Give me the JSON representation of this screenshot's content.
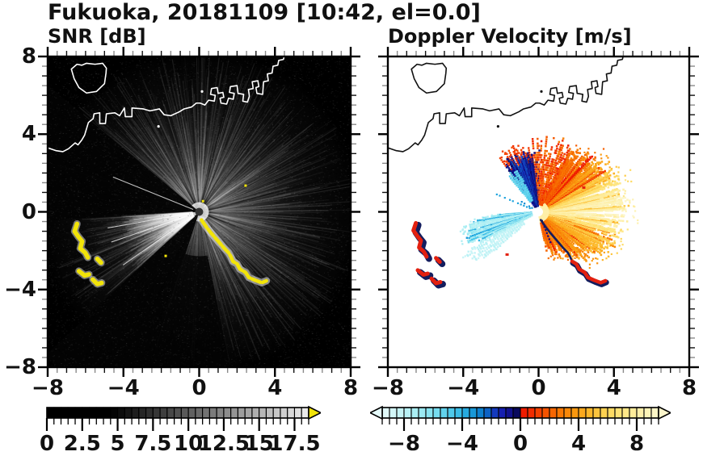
{
  "title": "Fukuoka, 20181109 [10:42, el=0.0]",
  "chart_data": [
    {
      "type": "heatmap",
      "title": "SNR [dB]",
      "xlim": [
        -8,
        8
      ],
      "ylim": [
        -8,
        8
      ],
      "grid": false,
      "xticks": {
        "values": [
          -8,
          -4,
          0,
          4,
          8
        ],
        "labels": [
          "−8",
          "−4",
          "0",
          "4",
          "8"
        ],
        "minor_step": 0.5
      },
      "yticks": {
        "values": [
          8,
          4,
          0,
          -4,
          -8
        ],
        "labels": [
          "8",
          "4",
          "0",
          "−4",
          "−8"
        ],
        "minor_step": 0.5
      },
      "colorbar": {
        "range": [
          0,
          18.5
        ],
        "segment_step": 0.5,
        "tick_values": [
          0,
          2.5,
          5,
          7.5,
          10,
          12.5,
          15,
          17.5
        ],
        "tick_labels": [
          "0",
          "2.5",
          "5",
          "7.5",
          "10",
          "12.5",
          "15",
          "17.5"
        ],
        "minor_step": 0.5,
        "ramp": {
          "black_until": 4.5,
          "white_at": 18.5,
          "max_gray": 237
        },
        "overflow_color": "#f2e409",
        "legend_position": "bottom"
      },
      "background_color": "#000000",
      "coast_color": "#ffffff",
      "features": {
        "radar_center": [
          0,
          0
        ],
        "center_dot_color": "#333333",
        "glow_radius_units": 8.8,
        "bright_sector_deg": [
          -80,
          140
        ],
        "dark_wedges_deg": [
          [
            140,
            183
          ],
          [
            223,
            252
          ]
        ],
        "south_dark_wedge_deg": [
          252,
          281
        ],
        "bright_wedges_deg": [
          [
            183,
            200,
            4.2
          ],
          [
            200,
            223,
            4.6
          ]
        ],
        "thin_bright_rays_deg": [
          158,
          190,
          199,
          215
        ],
        "thin_dark_rays_deg": [
          52,
          60,
          68,
          76
        ],
        "echo_arc": [
          [
            0.12,
            -0.42
          ],
          [
            0.38,
            -0.78
          ],
          [
            0.62,
            -1.08
          ],
          [
            0.95,
            -1.45
          ],
          [
            1.3,
            -1.85
          ],
          [
            1.55,
            -2.1
          ],
          [
            1.68,
            -2.32
          ],
          [
            1.78,
            -2.55
          ],
          [
            2.0,
            -2.68
          ],
          [
            2.15,
            -2.95
          ],
          [
            2.45,
            -3.12
          ],
          [
            2.62,
            -3.38
          ],
          [
            2.95,
            -3.52
          ],
          [
            3.3,
            -3.65
          ],
          [
            3.55,
            -3.55
          ]
        ],
        "echo_patches": [
          [
            [
              -6.45,
              -0.62
            ],
            [
              -6.58,
              -1.0
            ],
            [
              -6.38,
              -1.28
            ],
            [
              -6.18,
              -1.52
            ],
            [
              -6.28,
              -1.88
            ],
            [
              -6.02,
              -2.1
            ],
            [
              -5.88,
              -2.35
            ]
          ],
          [
            [
              -5.38,
              -2.42
            ],
            [
              -5.18,
              -2.62
            ]
          ],
          [
            [
              -6.35,
              -3.05
            ],
            [
              -6.05,
              -3.28
            ],
            [
              -5.82,
              -3.22
            ]
          ],
          [
            [
              -5.62,
              -3.48
            ],
            [
              -5.38,
              -3.72
            ],
            [
              -5.15,
              -3.66
            ]
          ]
        ],
        "specks": [
          [
            0.2,
            0.55
          ],
          [
            2.45,
            1.35
          ],
          [
            -1.77,
            -2.27
          ]
        ],
        "echo_color": "#f2e409"
      }
    },
    {
      "type": "heatmap",
      "title": "Doppler Velocity [m/s]",
      "xlim": [
        -8,
        8
      ],
      "ylim": [
        -8,
        8
      ],
      "grid": false,
      "xticks": {
        "values": [
          -8,
          -4,
          0,
          4,
          8
        ],
        "labels": [
          "−8",
          "−4",
          "0",
          "4",
          "8"
        ],
        "minor_step": 0.5
      },
      "yticks": {
        "values": [
          8,
          4,
          0,
          -4,
          -8
        ],
        "labels": [],
        "minor_step": 0.5
      },
      "colorbar": {
        "range": [
          -9.5,
          9.5
        ],
        "segment_step": 0.5,
        "tick_values": [
          -8,
          -4,
          0,
          4,
          8
        ],
        "tick_labels": [
          "−8",
          "−4",
          "0",
          "4",
          "8"
        ],
        "minor_step": 0.5,
        "underflow_color": "#e6fbfb",
        "overflow_color": "#fcf6cc",
        "legend_position": "bottom"
      },
      "background_color": "#ffffff",
      "coast_color": "#111111",
      "palette_anchors": [
        [
          -9.5,
          "#e6fbfb"
        ],
        [
          -8.5,
          "#ccf5f7"
        ],
        [
          -7.5,
          "#b2f0f4"
        ],
        [
          -6.5,
          "#93e7f1"
        ],
        [
          -5.5,
          "#6cd8ee"
        ],
        [
          -4.5,
          "#45c4e9"
        ],
        [
          -3.5,
          "#1da3dd"
        ],
        [
          -2.8,
          "#0e83cf"
        ],
        [
          -2.2,
          "#0d5fc4"
        ],
        [
          -1.7,
          "#1536bd"
        ],
        [
          -1.2,
          "#161cae"
        ],
        [
          -0.7,
          "#10108a"
        ],
        [
          -0.3,
          "#0a0a62"
        ],
        [
          -0.02,
          "#060646"
        ],
        [
          0.02,
          "#ee1400"
        ],
        [
          0.8,
          "#f12e00"
        ],
        [
          1.8,
          "#f55500"
        ],
        [
          2.8,
          "#f87a04"
        ],
        [
          3.8,
          "#fa9a10"
        ],
        [
          4.8,
          "#fcb92c"
        ],
        [
          5.8,
          "#fdd252"
        ],
        [
          6.8,
          "#fee378"
        ],
        [
          7.8,
          "#feec9c"
        ],
        [
          8.8,
          "#fdf3ba"
        ],
        [
          9.5,
          "#fcf6cc"
        ]
      ],
      "features": {
        "radar_center": [
          0,
          0
        ],
        "center_dot_color": "#ffffff",
        "warm_sector_deg": [
          -78,
          62
        ],
        "warm_velocity_by_azimuth": [
          [
            -75,
            1.8
          ],
          [
            -55,
            2.4
          ],
          [
            -38,
            3.2
          ],
          [
            -20,
            5.2
          ],
          [
            -5,
            7.6
          ],
          [
            8,
            7.9
          ],
          [
            20,
            5.8
          ],
          [
            32,
            3.6
          ],
          [
            45,
            2.4
          ],
          [
            62,
            1.4
          ]
        ],
        "warm_rmax_by_azimuth": [
          [
            -75,
            1.9
          ],
          [
            -62,
            2.5
          ],
          [
            -48,
            3.1
          ],
          [
            -32,
            3.9
          ],
          [
            -15,
            4.4
          ],
          [
            0,
            4.6
          ],
          [
            15,
            4.7
          ],
          [
            30,
            4.35
          ],
          [
            45,
            3.95
          ],
          [
            62,
            3.5
          ]
        ],
        "top_mixed_sector_deg": [
          62,
          97
        ],
        "navy_wedge_deg": [
          97,
          127
        ],
        "cyan_subwedge_deg": [
          117,
          131
        ],
        "cyan_wedge_deg": [
          184,
          208
        ],
        "pale_cyan_wedge_deg": [
          208,
          221
        ],
        "dashed_rays": [
          {
            "az": 158,
            "r0": 0.5,
            "r1": 2.4,
            "v": -3.5
          },
          {
            "az": 150,
            "r0": 0.4,
            "r1": 1.2,
            "v": -3.0
          },
          {
            "az": -68,
            "r0": 0.5,
            "r1": 1.8,
            "v": -0.6
          }
        ],
        "boundary_arc": [
          [
            0.12,
            -0.42
          ],
          [
            0.38,
            -0.78
          ],
          [
            0.62,
            -1.08
          ],
          [
            0.95,
            -1.45
          ],
          [
            1.3,
            -1.85
          ],
          [
            1.55,
            -2.1
          ],
          [
            1.68,
            -2.32
          ],
          [
            1.78,
            -2.55
          ],
          [
            2.0,
            -2.68
          ],
          [
            2.15,
            -2.95
          ],
          [
            2.45,
            -3.12
          ],
          [
            2.62,
            -3.38
          ],
          [
            2.95,
            -3.52
          ],
          [
            3.3,
            -3.65
          ],
          [
            3.55,
            -3.55
          ]
        ],
        "red_tail_from_index": 7,
        "clutter_patches": [
          [
            [
              -6.45,
              -0.62
            ],
            [
              -6.58,
              -1.0
            ],
            [
              -6.38,
              -1.28
            ],
            [
              -6.18,
              -1.52
            ],
            [
              -6.28,
              -1.88
            ],
            [
              -6.02,
              -2.1
            ],
            [
              -5.88,
              -2.35
            ]
          ],
          [
            [
              -5.38,
              -2.42
            ],
            [
              -5.18,
              -2.62
            ]
          ],
          [
            [
              -6.35,
              -3.05
            ],
            [
              -6.05,
              -3.28
            ],
            [
              -5.82,
              -3.22
            ]
          ],
          [
            [
              -5.62,
              -3.48
            ],
            [
              -5.38,
              -3.72
            ],
            [
              -5.15,
              -3.66
            ]
          ]
        ],
        "clutter_color": "#e3200f",
        "clutter_fringe_color": "#131d5e",
        "specks": [
          [
            -1.67,
            -2.2
          ],
          [
            2.4,
            1.25
          ]
        ]
      }
    }
  ],
  "map": {
    "coast_main": [
      [
        -8,
        3.3
      ],
      [
        -7.55,
        3.15
      ],
      [
        -7.2,
        3.1
      ],
      [
        -6.9,
        3.25
      ],
      [
        -6.55,
        3.55
      ],
      [
        -6.4,
        3.45
      ],
      [
        -6.2,
        3.7
      ],
      [
        -6.05,
        3.95
      ],
      [
        -5.85,
        4.6
      ],
      [
        -5.6,
        4.8
      ],
      [
        -5.55,
        5.05
      ],
      [
        -5.25,
        5.1
      ],
      [
        -5.25,
        4.55
      ],
      [
        -4.95,
        4.55
      ],
      [
        -4.9,
        5.05
      ],
      [
        -4.45,
        5.1
      ],
      [
        -4.2,
        4.95
      ],
      [
        -3.95,
        5.35
      ],
      [
        -3.9,
        4.9
      ],
      [
        -3.55,
        4.9
      ],
      [
        -3.55,
        5.35
      ],
      [
        -2.95,
        5.3
      ],
      [
        -2.6,
        5.2
      ],
      [
        -2.1,
        5.3
      ],
      [
        -1.85,
        5.0
      ],
      [
        -1.5,
        4.95
      ],
      [
        -1.05,
        5.15
      ],
      [
        -0.8,
        5.3
      ],
      [
        -0.4,
        5.4
      ],
      [
        -0.15,
        5.6
      ],
      [
        0.05,
        5.6
      ],
      [
        0.3,
        5.5
      ],
      [
        0.5,
        5.75
      ],
      [
        0.8,
        5.7
      ],
      [
        0.85,
        6.0
      ],
      [
        0.6,
        6.05
      ],
      [
        0.65,
        6.35
      ],
      [
        0.95,
        6.4
      ],
      [
        1.0,
        6.1
      ],
      [
        1.25,
        6.15
      ],
      [
        1.3,
        5.9
      ],
      [
        1.1,
        5.85
      ],
      [
        1.15,
        5.6
      ],
      [
        1.45,
        5.55
      ],
      [
        1.55,
        5.85
      ],
      [
        1.8,
        5.8
      ],
      [
        1.85,
        6.1
      ],
      [
        1.6,
        6.15
      ],
      [
        1.65,
        6.45
      ],
      [
        2.0,
        6.5
      ],
      [
        2.05,
        6.1
      ],
      [
        2.35,
        6.05
      ],
      [
        2.3,
        5.7
      ],
      [
        2.55,
        5.65
      ],
      [
        2.65,
        5.95
      ],
      [
        2.6,
        6.3
      ],
      [
        2.85,
        6.35
      ],
      [
        2.8,
        6.7
      ],
      [
        3.1,
        6.75
      ],
      [
        3.15,
        6.45
      ],
      [
        3.0,
        6.4
      ],
      [
        3.05,
        6.1
      ],
      [
        3.35,
        6.05
      ],
      [
        3.4,
        6.7
      ],
      [
        3.65,
        6.75
      ],
      [
        3.6,
        7.1
      ],
      [
        3.85,
        7.15
      ],
      [
        3.9,
        7.5
      ],
      [
        4.15,
        7.55
      ],
      [
        4.2,
        7.8
      ],
      [
        4.45,
        7.85
      ],
      [
        4.5,
        8.05
      ]
    ],
    "island": [
      [
        -6.75,
        7.35
      ],
      [
        -6.45,
        7.6
      ],
      [
        -6.2,
        7.55
      ],
      [
        -5.95,
        7.65
      ],
      [
        -5.5,
        7.6
      ],
      [
        -5.1,
        7.65
      ],
      [
        -4.9,
        7.4
      ],
      [
        -4.92,
        7.15
      ],
      [
        -5.0,
        6.6
      ],
      [
        -5.42,
        6.2
      ],
      [
        -5.95,
        6.12
      ],
      [
        -6.35,
        6.4
      ],
      [
        -6.6,
        6.85
      ]
    ],
    "islet_dots": [
      [
        -2.15,
        4.4
      ],
      [
        0.15,
        6.2
      ]
    ]
  }
}
